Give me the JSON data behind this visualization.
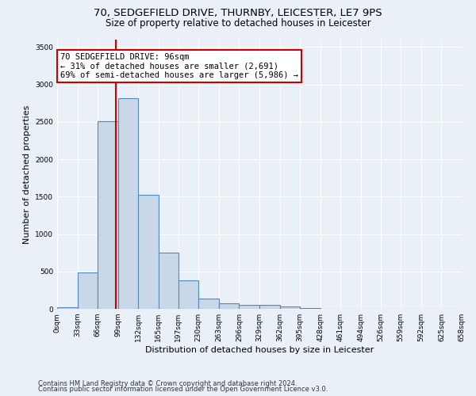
{
  "title_line1": "70, SEDGEFIELD DRIVE, THURNBY, LEICESTER, LE7 9PS",
  "title_line2": "Size of property relative to detached houses in Leicester",
  "xlabel": "Distribution of detached houses by size in Leicester",
  "ylabel": "Number of detached properties",
  "bar_values": [
    25,
    490,
    2510,
    2820,
    1520,
    750,
    385,
    140,
    70,
    55,
    55,
    30,
    10,
    0,
    0,
    0,
    0,
    0,
    0,
    0
  ],
  "bin_edges": [
    0,
    33,
    66,
    99,
    132,
    165,
    197,
    230,
    263,
    296,
    329,
    362,
    395,
    428,
    461,
    494,
    526,
    559,
    592,
    625,
    658
  ],
  "tick_labels": [
    "0sqm",
    "33sqm",
    "66sqm",
    "99sqm",
    "132sqm",
    "165sqm",
    "197sqm",
    "230sqm",
    "263sqm",
    "296sqm",
    "329sqm",
    "362sqm",
    "395sqm",
    "428sqm",
    "461sqm",
    "494sqm",
    "526sqm",
    "559sqm",
    "592sqm",
    "625sqm",
    "658sqm"
  ],
  "bar_color": "#c8d8e8",
  "bar_edge_color": "#5588bb",
  "vline_x": 96,
  "vline_color": "#cc0000",
  "annotation_text": "70 SEDGEFIELD DRIVE: 96sqm\n← 31% of detached houses are smaller (2,691)\n69% of semi-detached houses are larger (5,986) →",
  "annotation_box_color": "#cc0000",
  "ylim": [
    0,
    3600
  ],
  "yticks": [
    0,
    500,
    1000,
    1500,
    2000,
    2500,
    3000,
    3500
  ],
  "footer_line1": "Contains HM Land Registry data © Crown copyright and database right 2024.",
  "footer_line2": "Contains public sector information licensed under the Open Government Licence v3.0.",
  "bg_color": "#eaf0f8",
  "plot_bg_color": "#eaf0f8",
  "title_fontsize": 9.5,
  "subtitle_fontsize": 8.5,
  "axis_label_fontsize": 8,
  "tick_fontsize": 6.5,
  "footer_fontsize": 6,
  "annotation_fontsize": 7.5
}
